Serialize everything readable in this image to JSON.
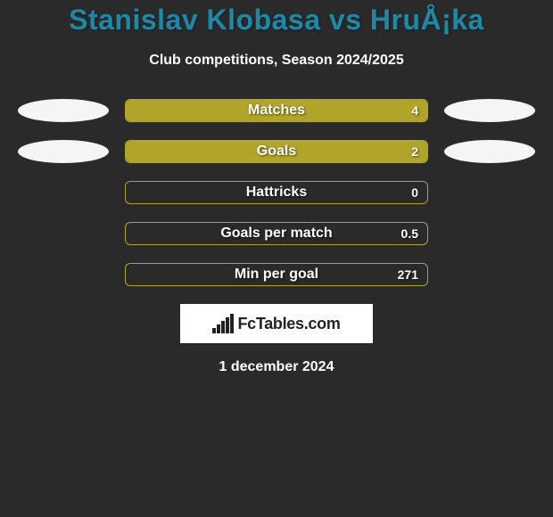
{
  "title": "Stanislav Klobasa vs HruÅ¡ka",
  "subtitle": "Club competitions, Season 2024/2025",
  "colors": {
    "background": "#2a2a2a",
    "title_color": "#1e88a8",
    "text_color": "#ffffff",
    "bar_fill": "#b0a52a",
    "bar_border": "#b0a52a",
    "ellipse": "#f5f5f3",
    "logo_bg": "#ffffff",
    "logo_text": "#222222"
  },
  "typography": {
    "title_fontsize": 32,
    "subtitle_fontsize": 16,
    "bar_label_fontsize": 16,
    "bar_value_fontsize": 14,
    "date_fontsize": 16
  },
  "bars": [
    {
      "label": "Matches",
      "value": "4",
      "fill_pct": 100,
      "left_ellipse": true,
      "right_ellipse": true
    },
    {
      "label": "Goals",
      "value": "2",
      "fill_pct": 100,
      "left_ellipse": true,
      "right_ellipse": true
    },
    {
      "label": "Hattricks",
      "value": "0",
      "fill_pct": 0,
      "left_ellipse": false,
      "right_ellipse": false
    },
    {
      "label": "Goals per match",
      "value": "0.5",
      "fill_pct": 0,
      "left_ellipse": false,
      "right_ellipse": false
    },
    {
      "label": "Min per goal",
      "value": "271",
      "fill_pct": 0,
      "left_ellipse": false,
      "right_ellipse": false
    }
  ],
  "logo": {
    "text": "FcTables.com",
    "bars": [
      6,
      10,
      14,
      18,
      22
    ]
  },
  "date": "1 december 2024"
}
